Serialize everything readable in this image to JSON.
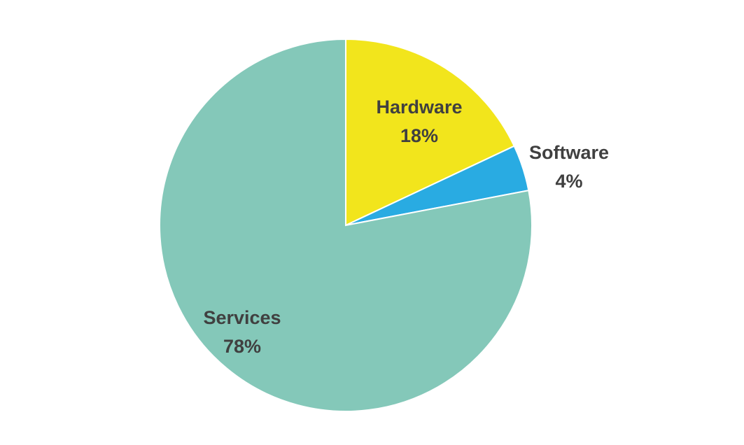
{
  "chart_data": {
    "type": "pie",
    "title": "",
    "start_angle_deg": 0,
    "direction": "clockwise",
    "legend": "none",
    "slices": [
      {
        "name": "Hardware",
        "value": 18,
        "label": "18%",
        "color": "#F2E51C"
      },
      {
        "name": "Software",
        "value": 4,
        "label": "4%",
        "color": "#29ABE2"
      },
      {
        "name": "Services",
        "value": 78,
        "label": "78%",
        "color": "#84C8B9"
      }
    ]
  }
}
